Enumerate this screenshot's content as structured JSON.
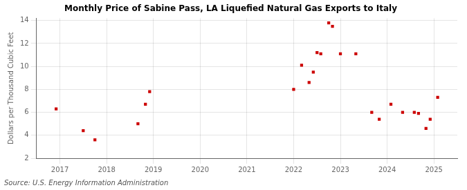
{
  "chart_data": {
    "type": "scatter",
    "title": "Monthly Price of Sabine Pass, LA Liquefied Natural Gas Exports to Italy",
    "ylabel": "Dollars per Thousand Cubic Feet",
    "annotation": "Source: U.S. Energy Information Administration",
    "x": [
      2016.92,
      2017.5,
      2017.75,
      2018.67,
      2018.83,
      2018.92,
      2022.0,
      2022.17,
      2022.33,
      2022.42,
      2022.5,
      2022.58,
      2022.75,
      2022.83,
      2023.0,
      2023.33,
      2023.67,
      2023.83,
      2024.08,
      2024.33,
      2024.58,
      2024.67,
      2024.83,
      2024.92,
      2025.08
    ],
    "values": [
      6.3,
      4.4,
      3.6,
      5.0,
      6.7,
      7.8,
      8.0,
      10.1,
      8.6,
      9.5,
      11.2,
      11.1,
      13.8,
      13.5,
      11.1,
      11.1,
      6.0,
      5.4,
      6.7,
      6.0,
      6.0,
      5.9,
      4.6,
      5.4,
      7.3
    ],
    "color": "#cc0000",
    "marker": "square",
    "xlim": [
      2016.5,
      2025.5
    ],
    "xticks": [
      2017,
      2018,
      2019,
      2020,
      2021,
      2022,
      2023,
      2024,
      2025
    ],
    "ylim": [
      2,
      14.2
    ],
    "yticks": [
      2,
      4,
      6,
      8,
      10,
      12,
      14
    ],
    "grid": true
  }
}
